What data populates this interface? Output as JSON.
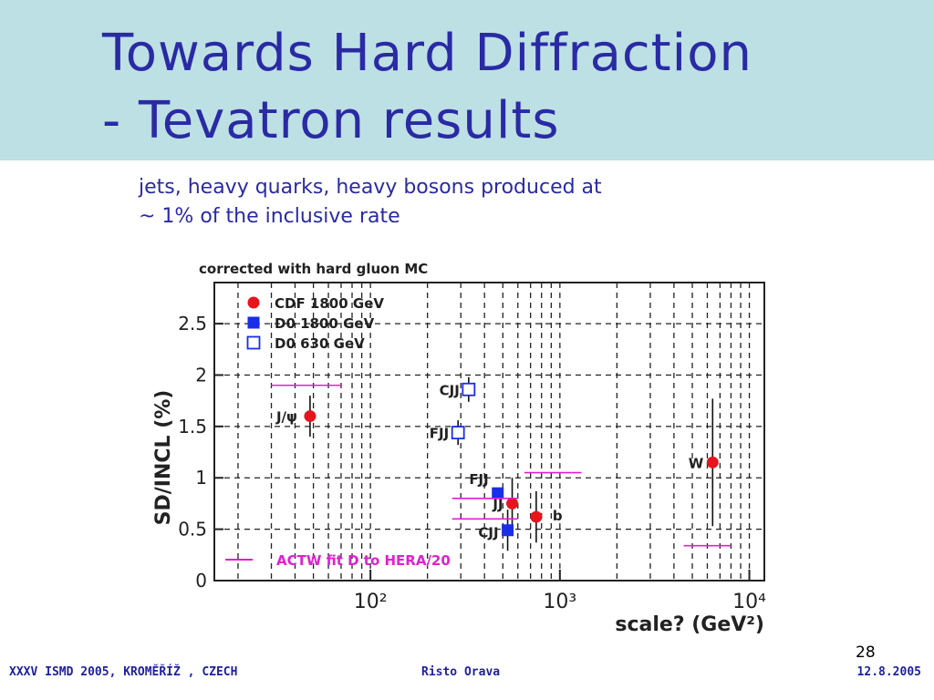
{
  "slide": {
    "title_line1": "Towards Hard Diffraction",
    "title_line2": "- Tevatron results",
    "subtitle_line1": "jets, heavy quarks, heavy bosons produced at",
    "subtitle_line2": "~ 1% of the inclusive rate",
    "page_number": "28"
  },
  "footer": {
    "left": "XXXV ISMD 2005, KROMĚŘÍŽ , CZECH",
    "center": "Risto Orava",
    "right": "12.8.2005"
  },
  "colors": {
    "title_band": "#bde0e4",
    "title_text": "#2a2aa5",
    "cdf": "#e8141c",
    "d0": "#1a2ee6",
    "actw": "#e020d0"
  },
  "chart_data": {
    "type": "scatter",
    "title": "corrected with hard gluon MC",
    "xlabel": "scale? (GeV²)",
    "ylabel": "SD/INCL (%)",
    "x_scale": "log",
    "xlim": [
      15,
      12000
    ],
    "ylim": [
      0,
      2.9
    ],
    "x_ticks": [
      {
        "value": 100,
        "label": "10²"
      },
      {
        "value": 1000,
        "label": "10³"
      },
      {
        "value": 10000,
        "label": "10⁴"
      }
    ],
    "y_ticks": [
      {
        "value": 0,
        "label": "0"
      },
      {
        "value": 0.5,
        "label": "0.5"
      },
      {
        "value": 1,
        "label": "1"
      },
      {
        "value": 1.5,
        "label": "1.5"
      },
      {
        "value": 2,
        "label": "2"
      },
      {
        "value": 2.5,
        "label": "2.5"
      }
    ],
    "grid": true,
    "legend_position": "top-left",
    "series": [
      {
        "name": "CDF  1800 GeV",
        "marker": "filled-circle",
        "color": "#e8141c",
        "points": [
          {
            "label": "J/ψ",
            "x": 48,
            "y": 1.6,
            "yerr": 0.2
          },
          {
            "label": "JJ",
            "x": 560,
            "y": 0.75,
            "yerr": 0.25
          },
          {
            "label": "b",
            "x": 750,
            "y": 0.62,
            "yerr": 0.25
          },
          {
            "label": "W",
            "x": 6400,
            "y": 1.15,
            "yerr": 0.62
          }
        ]
      },
      {
        "name": "D0   1800 GeV",
        "marker": "filled-square",
        "color": "#1a2ee6",
        "points": [
          {
            "label": "FJJ",
            "x": 470,
            "y": 0.85,
            "yerr": 0.05
          },
          {
            "label": "CJJ",
            "x": 530,
            "y": 0.49,
            "yerr": 0.2
          }
        ]
      },
      {
        "name": "D0   630 GeV",
        "marker": "open-square",
        "color": "#1a2ee6",
        "points": [
          {
            "label": "CJJ",
            "x": 330,
            "y": 1.86,
            "yerr": 0.12
          },
          {
            "label": "FJJ",
            "x": 290,
            "y": 1.44,
            "yerr": 0.12
          }
        ]
      },
      {
        "name": "ACTW fit D to HERA/20",
        "marker": "line-segment",
        "color": "#e020d0",
        "segments": [
          {
            "x_start": 30,
            "x_end": 70,
            "y": 1.9
          },
          {
            "x_start": 270,
            "x_end": 600,
            "y": 0.8
          },
          {
            "x_start": 270,
            "x_end": 600,
            "y": 0.6
          },
          {
            "x_start": 650,
            "x_end": 1300,
            "y": 1.05
          },
          {
            "x_start": 4500,
            "x_end": 8000,
            "y": 0.34
          }
        ]
      }
    ]
  }
}
